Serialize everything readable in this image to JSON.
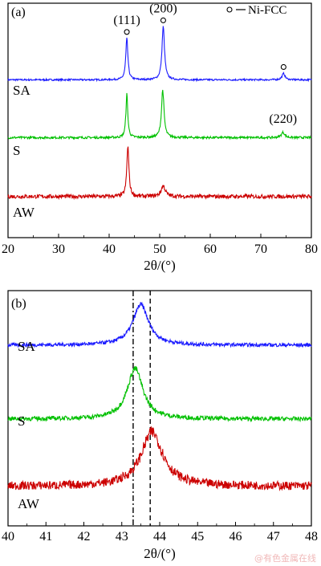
{
  "colors": {
    "SA": "#1a1aff",
    "S": "#00c000",
    "AW": "#cc0000",
    "axis": "#000000"
  },
  "watermark": "@有色金属在线",
  "chart_data": [
    {
      "type": "line",
      "panel_label": "(a)",
      "xlabel": "2θ/(°)",
      "xlim": [
        20,
        80
      ],
      "xticks": [
        20,
        30,
        40,
        50,
        60,
        70,
        80
      ],
      "legend": {
        "marker": "open-circle",
        "text": "Ni-FCC",
        "position": "top-right"
      },
      "series": [
        {
          "name": "SA",
          "offset": 2,
          "baseline": 0.1,
          "noise": 0.015,
          "peaks": [
            {
              "x": 43.5,
              "h": 0.78,
              "w": 0.25
            },
            {
              "x": 50.7,
              "h": 1.0,
              "w": 0.3
            },
            {
              "x": 74.5,
              "h": 0.12,
              "w": 0.35
            }
          ]
        },
        {
          "name": "S",
          "offset": 1,
          "baseline": 0.1,
          "noise": 0.02,
          "peaks": [
            {
              "x": 43.5,
              "h": 0.82,
              "w": 0.22
            },
            {
              "x": 50.6,
              "h": 0.9,
              "w": 0.3
            },
            {
              "x": 74.4,
              "h": 0.1,
              "w": 0.4
            }
          ]
        },
        {
          "name": "AW",
          "offset": 0,
          "baseline": 0.08,
          "noise": 0.035,
          "peaks": [
            {
              "x": 43.7,
              "h": 0.95,
              "w": 0.25
            },
            {
              "x": 50.7,
              "h": 0.2,
              "w": 0.5
            }
          ]
        }
      ],
      "annotations": [
        {
          "text": "(111)",
          "x": 43.5,
          "series": "SA",
          "circle": true
        },
        {
          "text": "(200)",
          "x": 50.7,
          "series": "SA",
          "circle": true
        },
        {
          "text": "",
          "x": 74.5,
          "series": "SA",
          "circle": true
        },
        {
          "text": "(220)",
          "x": 74.4,
          "series": "S",
          "circle": false
        }
      ]
    },
    {
      "type": "line",
      "panel_label": "(b)",
      "xlabel": "2θ/(°)",
      "xlim": [
        40,
        48
      ],
      "xticks": [
        40,
        41,
        42,
        43,
        44,
        45,
        46,
        47,
        48
      ],
      "reference_lines": [
        {
          "x": 43.3,
          "style": "dash-dot"
        },
        {
          "x": 43.75,
          "style": "dashed"
        }
      ],
      "series": [
        {
          "name": "SA",
          "offset": 2,
          "baseline": 0.12,
          "noise": 0.025,
          "peaks": [
            {
              "x": 43.5,
              "h": 0.6,
              "w": 0.25
            }
          ]
        },
        {
          "name": "S",
          "offset": 1,
          "baseline": 0.12,
          "noise": 0.03,
          "peaks": [
            {
              "x": 43.35,
              "h": 0.75,
              "w": 0.25
            }
          ]
        },
        {
          "name": "AW",
          "offset": 0,
          "baseline": 0.1,
          "noise": 0.06,
          "peaks": [
            {
              "x": 43.8,
              "h": 0.8,
              "w": 0.35
            }
          ]
        }
      ]
    }
  ]
}
